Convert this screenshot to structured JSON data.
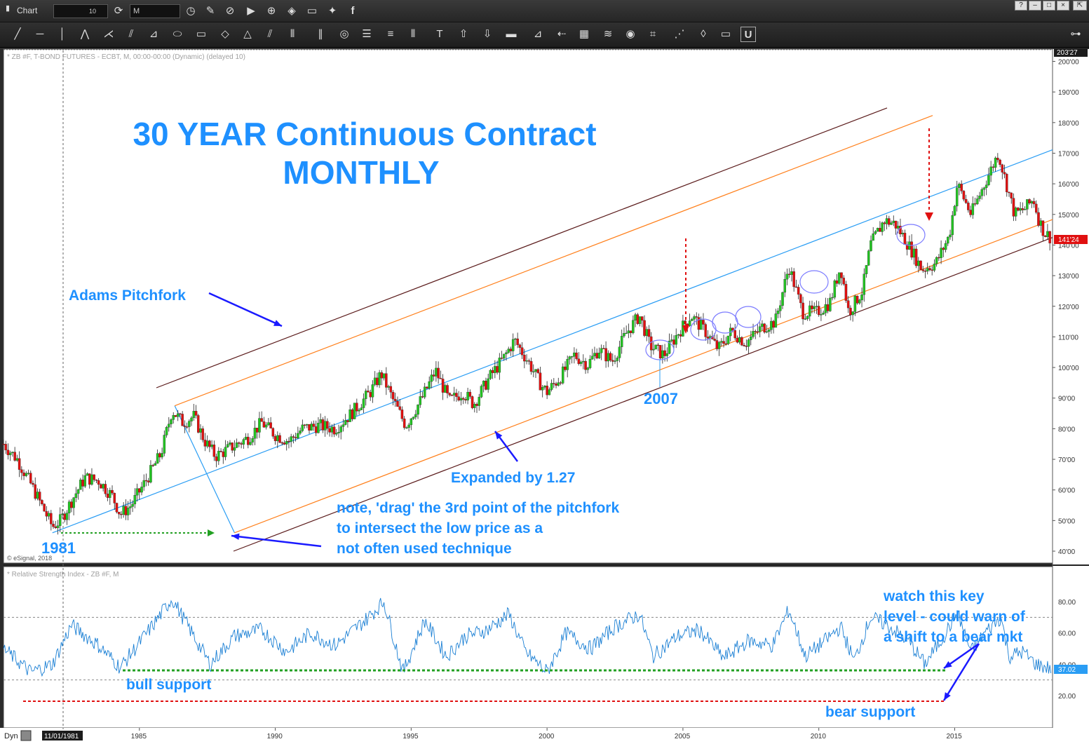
{
  "window": {
    "title": "Chart",
    "interval_box": "10",
    "symbol_box": "M",
    "buttons": [
      "?",
      "–",
      "□",
      "×"
    ]
  },
  "toolbar": {
    "tools": [
      "line-tool-icon",
      "horizontal-line-icon",
      "vertical-line-icon",
      "trend-tool-icon",
      "fan-icon",
      "fibonacci-icon",
      "gann-icon",
      "ellipse-icon",
      "rectangle-icon",
      "eraser-icon",
      "triangle-icon",
      "channel-icon",
      "bars-icon",
      "parallel-icon",
      "circle-icon",
      "lines-icon",
      "hlines-icon",
      "vlines-icon",
      "text-tool-icon",
      "arrow-up-icon",
      "arrow-down-icon",
      "block-icon",
      "measure-icon",
      "back-arrow-icon",
      "grid-icon",
      "moe-icon",
      "eye-icon",
      "pti-icon",
      "zigzag-icon",
      "pencil-icon",
      "comment-icon",
      "magnet-icon"
    ]
  },
  "price_panel": {
    "header": "* ZB #F, T-BOND FUTURES - ECBT, M, 00:00-00:00 (Dynamic) (delayed 10)",
    "copyright": "© eSignal, 2018",
    "top_label": "203'27",
    "last_price": "141'24",
    "y_ticks": [
      "200'00",
      "190'00",
      "180'00",
      "170'00",
      "160'00",
      "150'00",
      "140'00",
      "130'00",
      "120'00",
      "110'00",
      "100'00",
      "90'00",
      "80'00",
      "70'00",
      "60'00",
      "50'00",
      "40'00"
    ]
  },
  "rsi_panel": {
    "header": "* Relative Strength Index - ZB #F, M",
    "last_value": "37.02",
    "y_ticks": [
      "80.00",
      "60.00",
      "40.00",
      "20.00"
    ]
  },
  "x_axis": {
    "left_label": "Dyn",
    "cursor_date": "11/01/1981",
    "ticks": [
      "1985",
      "1990",
      "1995",
      "2000",
      "2005",
      "2010",
      "2015"
    ]
  },
  "annotations": {
    "title_line1": "30 YEAR Continuous Contract",
    "title_line2": "MONTHLY",
    "adams": "Adams Pitchfork",
    "expanded": "Expanded by 1.27",
    "note_line1": "note, 'drag' the 3rd point of the pitchfork",
    "note_line2": "to intersect the low price as a",
    "note_line3": "not often used technique",
    "year_1981": "1981",
    "year_2007": "2007",
    "watch_line1": "watch this key",
    "watch_line2": "level - could warn of",
    "watch_line3": "a shift to a bear mkt",
    "bull_support": "bull support",
    "bear_support": "bear support"
  },
  "colors": {
    "annotation_blue": "#1e90ff",
    "arrow_blue": "#1a1aff",
    "up_candle": "#22c422",
    "down_candle": "#e01010",
    "pitchfork_outer": "#5a1a1a",
    "pitchfork_inner": "#ff7f1a",
    "median_line": "#2a9df4",
    "rsi_line": "#1a7fd4"
  },
  "chart_data": {
    "type": "candlestick",
    "x_start": 1980.0,
    "x_end": 2018.6,
    "ylim": [
      37,
      204
    ],
    "rsi_ylim": [
      0,
      100
    ],
    "close_path": [
      [
        1980.0,
        75
      ],
      [
        1980.5,
        70
      ],
      [
        1981.0,
        62
      ],
      [
        1981.4,
        55
      ],
      [
        1981.8,
        48
      ],
      [
        1982.1,
        50
      ],
      [
        1982.6,
        58
      ],
      [
        1983.0,
        64
      ],
      [
        1983.5,
        63
      ],
      [
        1984.0,
        58
      ],
      [
        1984.3,
        52
      ],
      [
        1984.7,
        55
      ],
      [
        1985.3,
        64
      ],
      [
        1985.8,
        72
      ],
      [
        1986.2,
        86
      ],
      [
        1986.6,
        82
      ],
      [
        1987.0,
        84
      ],
      [
        1987.4,
        76
      ],
      [
        1987.8,
        71
      ],
      [
        1988.4,
        74
      ],
      [
        1989.0,
        77
      ],
      [
        1989.5,
        82
      ],
      [
        1990.0,
        78
      ],
      [
        1990.5,
        76
      ],
      [
        1991.0,
        80
      ],
      [
        1991.6,
        81
      ],
      [
        1992.2,
        80
      ],
      [
        1992.8,
        85
      ],
      [
        1993.5,
        92
      ],
      [
        1993.9,
        98
      ],
      [
        1994.3,
        90
      ],
      [
        1994.8,
        81
      ],
      [
        1995.4,
        90
      ],
      [
        1995.9,
        99
      ],
      [
        1996.4,
        89
      ],
      [
        1996.9,
        92
      ],
      [
        1997.3,
        88
      ],
      [
        1997.9,
        97
      ],
      [
        1998.4,
        103
      ],
      [
        1998.8,
        109
      ],
      [
        1999.3,
        102
      ],
      [
        1999.8,
        94
      ],
      [
        2000.0,
        92
      ],
      [
        2000.5,
        97
      ],
      [
        2001.0,
        104
      ],
      [
        2001.5,
        101
      ],
      [
        2001.9,
        106
      ],
      [
        2002.4,
        102
      ],
      [
        2002.9,
        111
      ],
      [
        2003.4,
        117
      ],
      [
        2003.8,
        107
      ],
      [
        2004.3,
        104
      ],
      [
        2004.8,
        111
      ],
      [
        2005.3,
        117
      ],
      [
        2005.8,
        112
      ],
      [
        2006.3,
        106
      ],
      [
        2006.8,
        112
      ],
      [
        2007.3,
        108
      ],
      [
        2007.9,
        113
      ],
      [
        2008.4,
        115
      ],
      [
        2008.9,
        133
      ],
      [
        2009.4,
        118
      ],
      [
        2009.9,
        118
      ],
      [
        2010.4,
        121
      ],
      [
        2010.8,
        133
      ],
      [
        2011.1,
        118
      ],
      [
        2011.6,
        125
      ],
      [
        2011.9,
        140
      ],
      [
        2012.4,
        148
      ],
      [
        2012.8,
        147
      ],
      [
        2013.3,
        140
      ],
      [
        2013.8,
        132
      ],
      [
        2014.3,
        134
      ],
      [
        2014.8,
        143
      ],
      [
        2015.1,
        160
      ],
      [
        2015.6,
        150
      ],
      [
        2016.0,
        158
      ],
      [
        2016.6,
        170
      ],
      [
        2016.9,
        160
      ],
      [
        2017.2,
        150
      ],
      [
        2017.6,
        152
      ],
      [
        2017.9,
        155
      ],
      [
        2018.1,
        148
      ],
      [
        2018.3,
        144
      ],
      [
        2018.6,
        142
      ]
    ],
    "rsi_path": [
      [
        1980.0,
        50
      ],
      [
        1981.0,
        35
      ],
      [
        1981.8,
        40
      ],
      [
        1982.5,
        65
      ],
      [
        1983.5,
        52
      ],
      [
        1984.3,
        38
      ],
      [
        1985.5,
        65
      ],
      [
        1986.2,
        82
      ],
      [
        1987.0,
        58
      ],
      [
        1987.6,
        40
      ],
      [
        1988.5,
        58
      ],
      [
        1989.5,
        62
      ],
      [
        1990.4,
        48
      ],
      [
        1991.3,
        60
      ],
      [
        1992.2,
        52
      ],
      [
        1993.3,
        68
      ],
      [
        1994.0,
        80
      ],
      [
        1994.7,
        35
      ],
      [
        1995.5,
        68
      ],
      [
        1996.3,
        45
      ],
      [
        1997.0,
        58
      ],
      [
        1997.8,
        62
      ],
      [
        1998.6,
        72
      ],
      [
        1999.2,
        48
      ],
      [
        2000.0,
        35
      ],
      [
        2000.7,
        60
      ],
      [
        2001.6,
        50
      ],
      [
        2002.5,
        64
      ],
      [
        2003.4,
        72
      ],
      [
        2003.9,
        45
      ],
      [
        2004.8,
        58
      ],
      [
        2005.6,
        62
      ],
      [
        2006.5,
        44
      ],
      [
        2007.4,
        55
      ],
      [
        2008.3,
        52
      ],
      [
        2008.9,
        75
      ],
      [
        2009.5,
        45
      ],
      [
        2010.3,
        56
      ],
      [
        2010.8,
        64
      ],
      [
        2011.3,
        42
      ],
      [
        2011.9,
        70
      ],
      [
        2012.5,
        65
      ],
      [
        2013.3,
        55
      ],
      [
        2013.9,
        40
      ],
      [
        2014.6,
        58
      ],
      [
        2015.1,
        73
      ],
      [
        2015.6,
        48
      ],
      [
        2016.1,
        60
      ],
      [
        2016.7,
        70
      ],
      [
        2017.0,
        45
      ],
      [
        2017.5,
        48
      ],
      [
        2018.0,
        40
      ],
      [
        2018.6,
        37
      ]
    ],
    "pitchfork": {
      "anchor_1981": [
        1981.8,
        46
      ],
      "point_1986": [
        1986.3,
        87.5
      ],
      "point_1988": [
        1988.5,
        46
      ]
    },
    "rsi_levels": {
      "bull_support": 36,
      "bear_support": 18,
      "upper_dashed": 70,
      "lower_dashed": 30
    },
    "circled_lows_years": [
      2007.6,
      2009.4,
      2010.3,
      2011.3,
      2014.0,
      2018.4
    ]
  }
}
